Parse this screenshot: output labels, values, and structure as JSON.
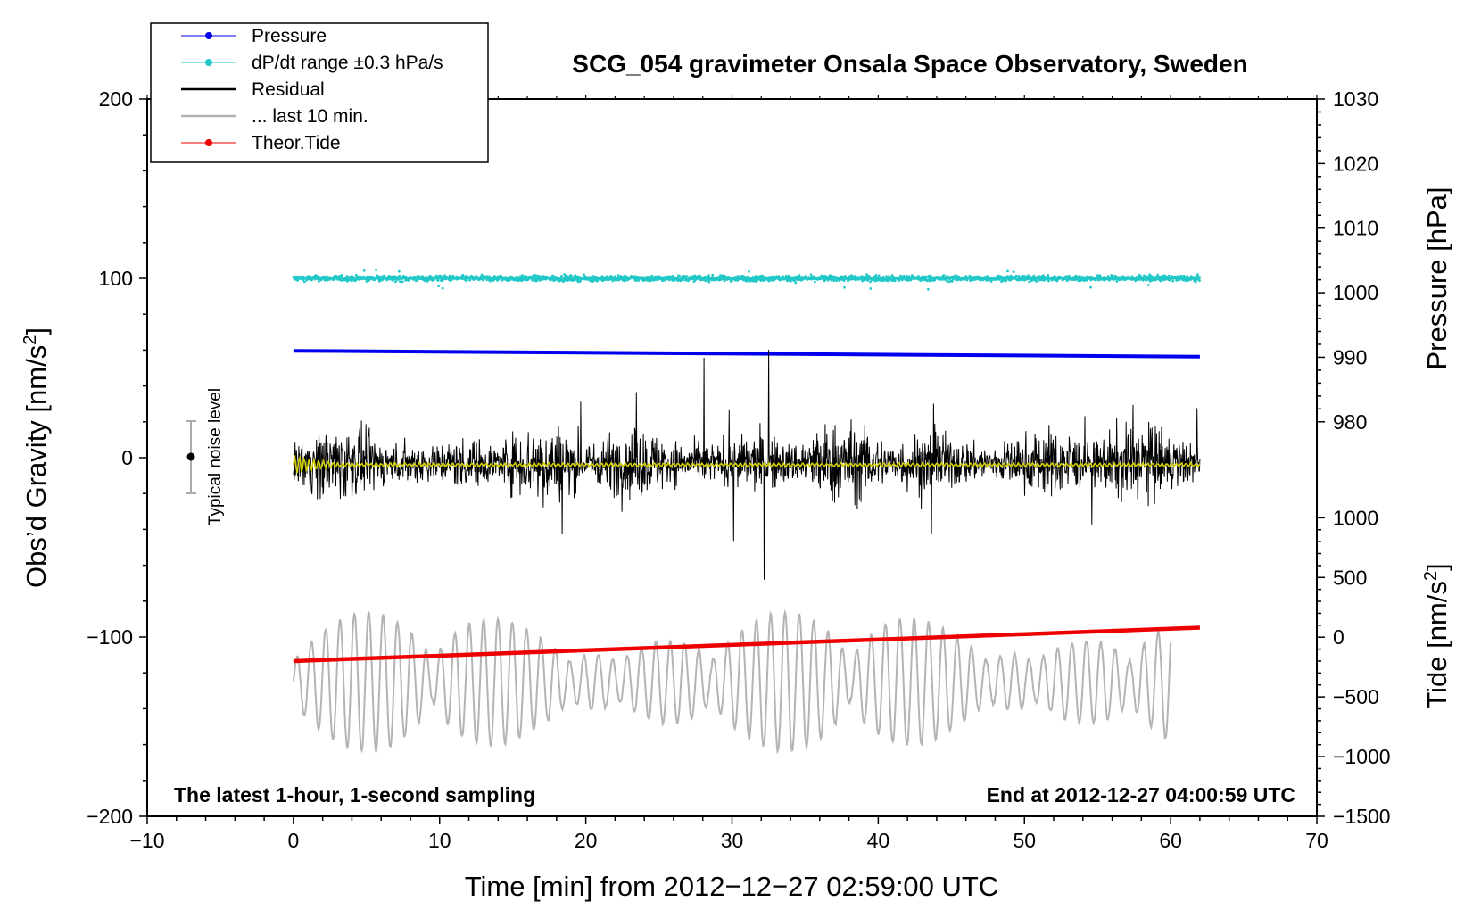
{
  "chart_data": {
    "type": "line",
    "title": "SCG_054 gravimeter Onsala Space Observatory, Sweden",
    "xlabel": "Time [min] from 2012−12−27 02:59:00 UTC",
    "ylabel_left_main": "Obs’d Gravity [nm/s",
    "ylabel_left_sup": "2",
    "ylabel_left_end": "]",
    "ylabel_right_top": "Pressure [hPa]",
    "ylabel_right_bottom_main": "Tide [nm/s",
    "ylabel_right_bottom_sup": "2",
    "ylabel_right_bottom_end": "]",
    "xlim": [
      -10,
      70
    ],
    "ylim_left": [
      -200,
      200
    ],
    "pressure_axis": [
      980,
      1030
    ],
    "tide_axis": [
      -1500,
      1000
    ],
    "x_ticks": [
      "−10",
      "0",
      "10",
      "20",
      "30",
      "40",
      "50",
      "60",
      "70"
    ],
    "y_ticks_left": [
      "200",
      "100",
      "0",
      "−100",
      "−200"
    ],
    "y_ticks_pressure": [
      "1030",
      "1020",
      "1010",
      "1000",
      "990",
      "980"
    ],
    "y_ticks_tide": [
      "1000",
      "500",
      "0",
      "−500",
      "−1000",
      "−1500"
    ],
    "annotation_left": "The latest 1-hour, 1-second sampling",
    "annotation_right": "End at 2012-12-27 04:00:59 UTC",
    "noise_label": "Typical noise level",
    "legend": [
      {
        "label": "Pressure",
        "color": "#0000ee",
        "style": "line-dot"
      },
      {
        "label": "dP/dt range ±0.3 hPa/s",
        "color": "#22c8c8",
        "style": "line-dot"
      },
      {
        "label": "Residual",
        "color": "#000000",
        "style": "line"
      },
      {
        "label": "... last 10 min.",
        "color": "#b4b4b4",
        "style": "line"
      },
      {
        "label": "Theor.Tide",
        "color": "#ee0000",
        "style": "line-dot"
      }
    ],
    "series": [
      {
        "name": "Pressure",
        "axis": "pressure_hPa",
        "x": [
          0,
          62
        ],
        "values": [
          991.0,
          990.1
        ],
        "color": "#0000ee"
      },
      {
        "name": "dP/dt",
        "axis": "gravity_nm_s2",
        "x": [
          0,
          62
        ],
        "center": 100,
        "spread": 2,
        "color": "#22c8c8"
      },
      {
        "name": "Residual",
        "axis": "gravity_nm_s2",
        "x": [
          0,
          62
        ],
        "center": -3,
        "amplitude": 60,
        "color": "#000000"
      },
      {
        "name": "Residual (smoothed)",
        "axis": "gravity_nm_s2",
        "x": [
          0,
          62
        ],
        "center": -4,
        "color": "#d0d000"
      },
      {
        "name": "... last 10 min.",
        "axis": "gravity_nm_s2",
        "x": [
          0,
          60
        ],
        "center": -125,
        "amplitude": 40,
        "color": "#b4b4b4"
      },
      {
        "name": "Theor.Tide",
        "axis": "tide_nm_s2",
        "x": [
          0,
          62
        ],
        "values": [
          -200,
          80
        ],
        "color": "#ee0000"
      }
    ],
    "noise_bar": {
      "x": -7,
      "center": 0,
      "low": -20,
      "high": 20
    }
  }
}
